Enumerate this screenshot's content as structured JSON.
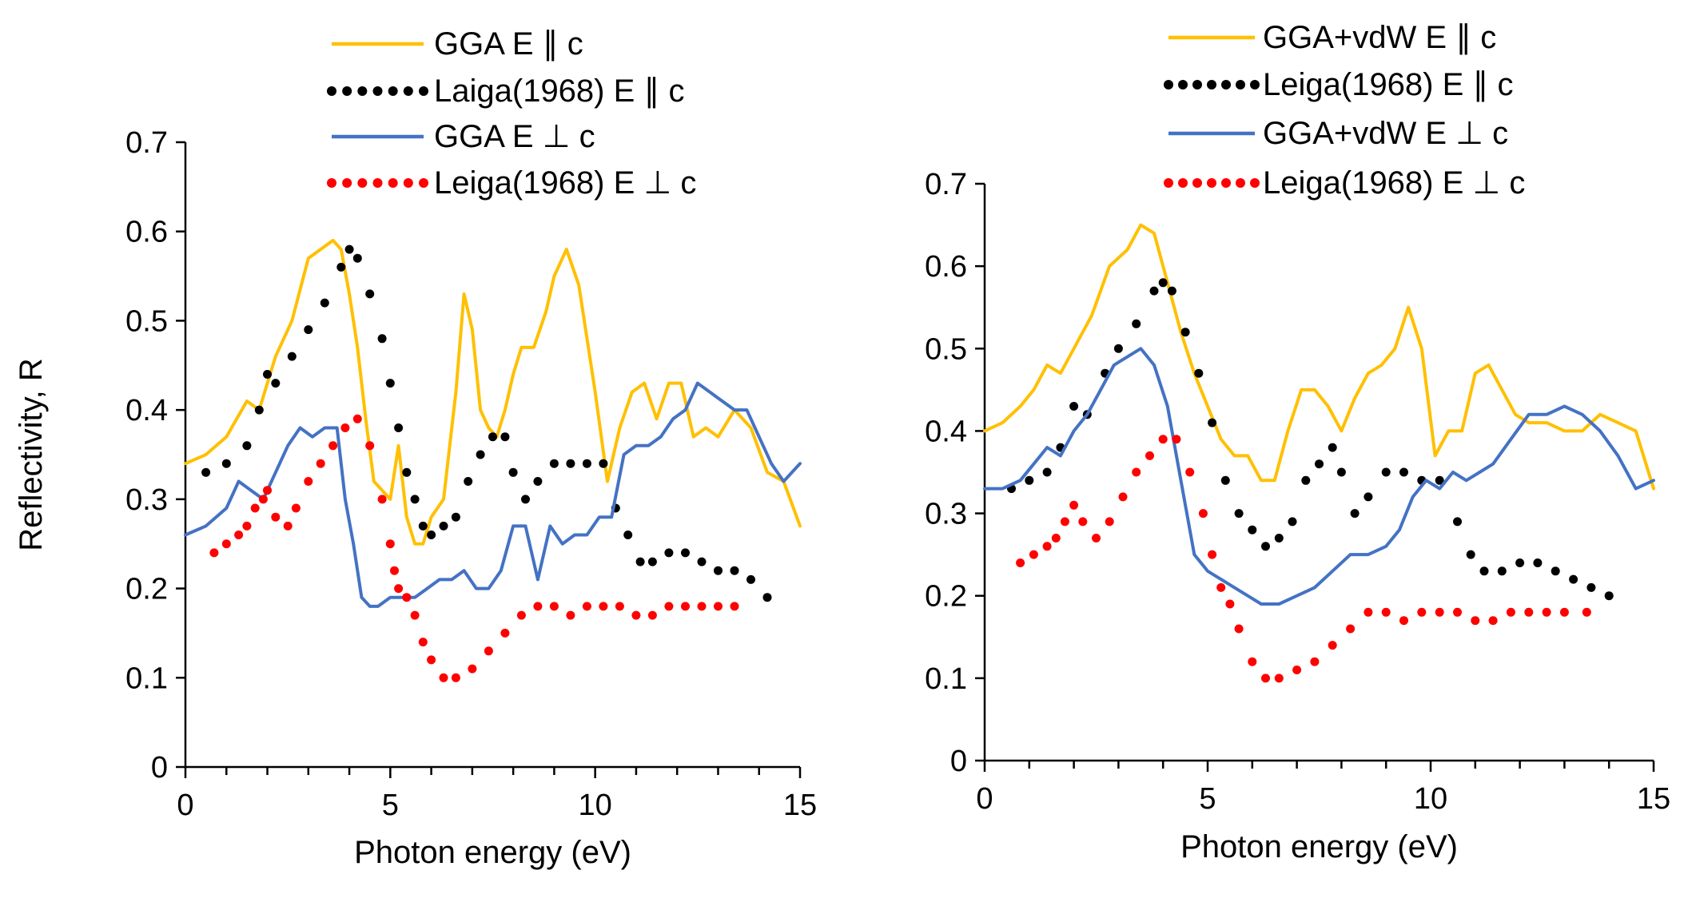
{
  "chart_data": [
    {
      "type": "line",
      "panel": "left",
      "xlabel": "Photon energy (eV)",
      "ylabel": "Reflectivity, R",
      "xlim": [
        0,
        15
      ],
      "ylim": [
        0,
        0.7
      ],
      "xticks": [
        0,
        5,
        10,
        15
      ],
      "yticks": [
        0,
        0.1,
        0.2,
        0.3,
        0.4,
        0.5,
        0.6,
        0.7
      ],
      "legend_position": "top",
      "series": [
        {
          "name": "GGA E ∥ c",
          "color": "#FFC000",
          "style": "solid",
          "x": [
            0,
            0.5,
            1,
            1.5,
            1.8,
            2.2,
            2.6,
            3.0,
            3.3,
            3.6,
            3.8,
            4.0,
            4.2,
            4.4,
            4.6,
            4.8,
            5.0,
            5.2,
            5.4,
            5.6,
            5.8,
            6.0,
            6.3,
            6.6,
            6.8,
            7.0,
            7.2,
            7.4,
            7.6,
            7.8,
            8.0,
            8.2,
            8.5,
            8.8,
            9.0,
            9.3,
            9.6,
            10.0,
            10.3,
            10.6,
            10.9,
            11.2,
            11.5,
            11.8,
            12.1,
            12.4,
            12.7,
            13.0,
            13.4,
            13.8,
            14.2,
            14.6,
            15.0
          ],
          "y": [
            0.34,
            0.35,
            0.37,
            0.41,
            0.4,
            0.46,
            0.5,
            0.57,
            0.58,
            0.59,
            0.58,
            0.53,
            0.47,
            0.39,
            0.32,
            0.31,
            0.3,
            0.36,
            0.28,
            0.25,
            0.25,
            0.28,
            0.3,
            0.42,
            0.53,
            0.49,
            0.4,
            0.38,
            0.37,
            0.4,
            0.44,
            0.47,
            0.47,
            0.51,
            0.55,
            0.58,
            0.54,
            0.42,
            0.32,
            0.38,
            0.42,
            0.43,
            0.39,
            0.43,
            0.43,
            0.37,
            0.38,
            0.37,
            0.4,
            0.38,
            0.33,
            0.32,
            0.27
          ]
        },
        {
          "name": "Laiga(1968) E ∥ c",
          "color": "#000000",
          "style": "dotted",
          "x": [
            0.5,
            1.0,
            1.5,
            1.8,
            2.0,
            2.2,
            2.6,
            3.0,
            3.4,
            3.8,
            4.0,
            4.2,
            4.5,
            4.8,
            5.0,
            5.2,
            5.4,
            5.6,
            5.8,
            6.0,
            6.3,
            6.6,
            6.9,
            7.2,
            7.5,
            7.8,
            8.0,
            8.3,
            8.6,
            9.0,
            9.4,
            9.8,
            10.2,
            10.5,
            10.8,
            11.1,
            11.4,
            11.8,
            12.2,
            12.6,
            13.0,
            13.4,
            13.8,
            14.2
          ],
          "y": [
            0.33,
            0.34,
            0.36,
            0.4,
            0.44,
            0.43,
            0.46,
            0.49,
            0.52,
            0.56,
            0.58,
            0.57,
            0.53,
            0.48,
            0.43,
            0.38,
            0.33,
            0.3,
            0.27,
            0.26,
            0.27,
            0.28,
            0.32,
            0.35,
            0.37,
            0.37,
            0.33,
            0.3,
            0.32,
            0.34,
            0.34,
            0.34,
            0.34,
            0.29,
            0.26,
            0.23,
            0.23,
            0.24,
            0.24,
            0.23,
            0.22,
            0.22,
            0.21,
            0.19
          ]
        },
        {
          "name": "GGA E ⊥ c",
          "color": "#4472C4",
          "style": "solid",
          "x": [
            0,
            0.5,
            1.0,
            1.3,
            1.6,
            1.9,
            2.2,
            2.5,
            2.8,
            3.1,
            3.4,
            3.7,
            3.9,
            4.1,
            4.3,
            4.5,
            4.7,
            5.0,
            5.3,
            5.6,
            5.9,
            6.2,
            6.5,
            6.8,
            7.1,
            7.4,
            7.7,
            8.0,
            8.3,
            8.6,
            8.9,
            9.2,
            9.5,
            9.8,
            10.1,
            10.4,
            10.7,
            11.0,
            11.3,
            11.6,
            11.9,
            12.2,
            12.5,
            12.8,
            13.1,
            13.4,
            13.7,
            14.0,
            14.3,
            14.6,
            15.0
          ],
          "y": [
            0.26,
            0.27,
            0.29,
            0.32,
            0.31,
            0.3,
            0.33,
            0.36,
            0.38,
            0.37,
            0.38,
            0.38,
            0.3,
            0.25,
            0.19,
            0.18,
            0.18,
            0.19,
            0.19,
            0.19,
            0.2,
            0.21,
            0.21,
            0.22,
            0.2,
            0.2,
            0.22,
            0.27,
            0.27,
            0.21,
            0.27,
            0.25,
            0.26,
            0.26,
            0.28,
            0.28,
            0.35,
            0.36,
            0.36,
            0.37,
            0.39,
            0.4,
            0.43,
            0.42,
            0.41,
            0.4,
            0.4,
            0.37,
            0.34,
            0.32,
            0.34
          ]
        },
        {
          "name": "Leiga(1968) E ⊥ c",
          "color": "#FF0000",
          "style": "dotted",
          "x": [
            0.7,
            1.0,
            1.3,
            1.5,
            1.7,
            1.9,
            2.0,
            2.2,
            2.5,
            2.7,
            3.0,
            3.3,
            3.6,
            3.9,
            4.2,
            4.5,
            4.8,
            5.0,
            5.1,
            5.2,
            5.4,
            5.6,
            5.8,
            6.0,
            6.3,
            6.6,
            7.0,
            7.4,
            7.8,
            8.2,
            8.6,
            9.0,
            9.4,
            9.8,
            10.2,
            10.6,
            11.0,
            11.4,
            11.8,
            12.2,
            12.6,
            13.0,
            13.4
          ],
          "y": [
            0.24,
            0.25,
            0.26,
            0.27,
            0.29,
            0.3,
            0.31,
            0.28,
            0.27,
            0.29,
            0.32,
            0.34,
            0.36,
            0.38,
            0.39,
            0.36,
            0.3,
            0.25,
            0.22,
            0.2,
            0.19,
            0.17,
            0.14,
            0.12,
            0.1,
            0.1,
            0.11,
            0.13,
            0.15,
            0.17,
            0.18,
            0.18,
            0.17,
            0.18,
            0.18,
            0.18,
            0.17,
            0.17,
            0.18,
            0.18,
            0.18,
            0.18,
            0.18
          ]
        }
      ]
    },
    {
      "type": "line",
      "panel": "right",
      "xlabel": "Photon energy (eV)",
      "ylabel": "",
      "xlim": [
        0,
        15
      ],
      "ylim": [
        0,
        0.7
      ],
      "xticks": [
        0,
        5,
        10,
        15
      ],
      "yticks": [
        0,
        0.1,
        0.2,
        0.3,
        0.4,
        0.5,
        0.6,
        0.7
      ],
      "legend_position": "top",
      "series": [
        {
          "name": "GGA+vdW E ∥ c",
          "color": "#FFC000",
          "style": "solid",
          "x": [
            0,
            0.4,
            0.8,
            1.1,
            1.4,
            1.7,
            2.0,
            2.4,
            2.8,
            3.2,
            3.5,
            3.8,
            4.1,
            4.4,
            4.7,
            5.0,
            5.3,
            5.6,
            5.9,
            6.2,
            6.5,
            6.8,
            7.1,
            7.4,
            7.7,
            8.0,
            8.3,
            8.6,
            8.9,
            9.2,
            9.5,
            9.8,
            10.1,
            10.4,
            10.7,
            11.0,
            11.3,
            11.6,
            11.9,
            12.2,
            12.6,
            13.0,
            13.4,
            13.8,
            14.2,
            14.6,
            15.0
          ],
          "y": [
            0.4,
            0.41,
            0.43,
            0.45,
            0.48,
            0.47,
            0.5,
            0.54,
            0.6,
            0.62,
            0.65,
            0.64,
            0.58,
            0.52,
            0.47,
            0.43,
            0.39,
            0.37,
            0.37,
            0.34,
            0.34,
            0.4,
            0.45,
            0.45,
            0.43,
            0.4,
            0.44,
            0.47,
            0.48,
            0.5,
            0.55,
            0.5,
            0.37,
            0.4,
            0.4,
            0.47,
            0.48,
            0.45,
            0.42,
            0.41,
            0.41,
            0.4,
            0.4,
            0.42,
            0.41,
            0.4,
            0.33
          ]
        },
        {
          "name": "Leiga(1968) E ∥ c",
          "color": "#000000",
          "style": "dotted",
          "x": [
            0.6,
            1.0,
            1.4,
            1.7,
            2.0,
            2.3,
            2.7,
            3.0,
            3.4,
            3.8,
            4.0,
            4.2,
            4.5,
            4.8,
            5.1,
            5.4,
            5.7,
            6.0,
            6.3,
            6.6,
            6.9,
            7.2,
            7.5,
            7.8,
            8.0,
            8.3,
            8.6,
            9.0,
            9.4,
            9.8,
            10.2,
            10.6,
            10.9,
            11.2,
            11.6,
            12.0,
            12.4,
            12.8,
            13.2,
            13.6,
            14.0
          ],
          "y": [
            0.33,
            0.34,
            0.35,
            0.38,
            0.43,
            0.42,
            0.47,
            0.5,
            0.53,
            0.57,
            0.58,
            0.57,
            0.52,
            0.47,
            0.41,
            0.34,
            0.3,
            0.28,
            0.26,
            0.27,
            0.29,
            0.34,
            0.36,
            0.38,
            0.35,
            0.3,
            0.32,
            0.35,
            0.35,
            0.34,
            0.34,
            0.29,
            0.25,
            0.23,
            0.23,
            0.24,
            0.24,
            0.23,
            0.22,
            0.21,
            0.2
          ]
        },
        {
          "name": "GGA+vdW E ⊥ c",
          "color": "#4472C4",
          "style": "solid",
          "x": [
            0,
            0.4,
            0.8,
            1.1,
            1.4,
            1.7,
            2.0,
            2.3,
            2.6,
            2.9,
            3.2,
            3.5,
            3.8,
            4.1,
            4.4,
            4.7,
            5.0,
            5.3,
            5.6,
            5.9,
            6.2,
            6.6,
            7.0,
            7.4,
            7.8,
            8.2,
            8.6,
            9.0,
            9.3,
            9.6,
            9.9,
            10.2,
            10.5,
            10.8,
            11.1,
            11.4,
            11.8,
            12.2,
            12.6,
            13.0,
            13.4,
            13.8,
            14.2,
            14.6,
            15.0
          ],
          "y": [
            0.33,
            0.33,
            0.34,
            0.36,
            0.38,
            0.37,
            0.4,
            0.42,
            0.45,
            0.48,
            0.49,
            0.5,
            0.48,
            0.43,
            0.34,
            0.25,
            0.23,
            0.22,
            0.21,
            0.2,
            0.19,
            0.19,
            0.2,
            0.21,
            0.23,
            0.25,
            0.25,
            0.26,
            0.28,
            0.32,
            0.34,
            0.33,
            0.35,
            0.34,
            0.35,
            0.36,
            0.39,
            0.42,
            0.42,
            0.43,
            0.42,
            0.4,
            0.37,
            0.33,
            0.34
          ]
        },
        {
          "name": "Leiga(1968) E ⊥ c",
          "color": "#FF0000",
          "style": "dotted",
          "x": [
            0.8,
            1.1,
            1.4,
            1.6,
            1.8,
            2.0,
            2.2,
            2.5,
            2.8,
            3.1,
            3.4,
            3.7,
            4.0,
            4.3,
            4.6,
            4.9,
            5.1,
            5.3,
            5.5,
            5.7,
            6.0,
            6.3,
            6.6,
            7.0,
            7.4,
            7.8,
            8.2,
            8.6,
            9.0,
            9.4,
            9.8,
            10.2,
            10.6,
            11.0,
            11.4,
            11.8,
            12.2,
            12.6,
            13.0,
            13.5
          ],
          "y": [
            0.24,
            0.25,
            0.26,
            0.27,
            0.29,
            0.31,
            0.29,
            0.27,
            0.29,
            0.32,
            0.35,
            0.37,
            0.39,
            0.39,
            0.35,
            0.3,
            0.25,
            0.21,
            0.19,
            0.16,
            0.12,
            0.1,
            0.1,
            0.11,
            0.12,
            0.14,
            0.16,
            0.18,
            0.18,
            0.17,
            0.18,
            0.18,
            0.18,
            0.17,
            0.17,
            0.18,
            0.18,
            0.18,
            0.18,
            0.18
          ]
        }
      ]
    }
  ]
}
